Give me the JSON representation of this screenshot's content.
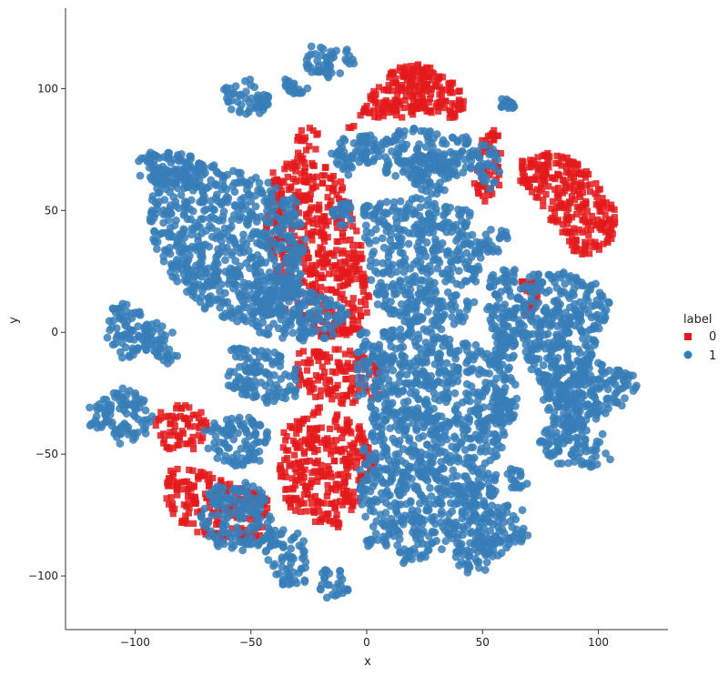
{
  "chart_data": {
    "type": "scatter",
    "xlabel": "x",
    "ylabel": "y",
    "xlim": [
      -130,
      130
    ],
    "ylim": [
      -122,
      133
    ],
    "xticks": [
      -100,
      -50,
      0,
      50,
      100
    ],
    "yticks": [
      -100,
      -50,
      0,
      50,
      100
    ],
    "grid": false,
    "spines": "left-bottom",
    "legend": {
      "title": "label",
      "placement": "right"
    },
    "series": [
      {
        "name": "0",
        "marker": "square",
        "color": "#e41a1c",
        "regions": [
          {
            "x": -13,
            "y": 10,
            "rx": 1.2,
            "ry": 1.8,
            "xs": [
              -12,
              -4,
              6,
              16,
              26,
              36,
              42,
              42,
              30,
              14,
              0,
              -6,
              -12
            ],
            "ys": [
              80,
              88,
              104,
              110,
              110,
              104,
              98,
              86,
              90,
              88,
              88,
              84,
              80
            ]
          },
          {
            "x": -20,
            "y": 45,
            "xs": [
              -40,
              -24,
              -12,
              -4,
              2,
              -4,
              -20,
              -36,
              -44
            ],
            "ys": [
              70,
              72,
              64,
              44,
              12,
              -2,
              -2,
              10,
              40
            ]
          },
          {
            "x": 88,
            "y": 55,
            "xs": [
              66,
              80,
              92,
              100,
              108,
              106,
              98,
              88,
              78,
              72,
              66
            ],
            "ys": [
              70,
              74,
              70,
              60,
              50,
              36,
              30,
              34,
              48,
              56,
              62
            ]
          },
          {
            "x": -5,
            "y": -18,
            "xs": [
              -30,
              -18,
              -4,
              6,
              6,
              -6,
              -20,
              -32
            ],
            "ys": [
              -8,
              -6,
              -8,
              -14,
              -26,
              -30,
              -28,
              -20
            ]
          },
          {
            "x": -12,
            "y": -60,
            "xs": [
              -36,
              -20,
              -4,
              4,
              -2,
              -12,
              -26,
              -36,
              -38
            ],
            "ys": [
              -40,
              -30,
              -36,
              -52,
              -70,
              -80,
              -78,
              -70,
              -56
            ]
          },
          {
            "x": -75,
            "y": -70,
            "xs": [
              -86,
              -72,
              -60,
              -42,
              -44,
              -62,
              -80,
              -88
            ],
            "ys": [
              -56,
              -56,
              -62,
              -66,
              -84,
              -86,
              -80,
              -68
            ]
          },
          {
            "x": -80,
            "y": -40,
            "xs": [
              -90,
              -74,
              -66,
              -72,
              -86,
              -92
            ],
            "ys": [
              -30,
              -30,
              -38,
              -48,
              -48,
              -40
            ]
          },
          {
            "x": 54,
            "y": 70,
            "xs": [
              48,
              58,
              58,
              50,
              46
            ],
            "ys": [
              82,
              84,
              60,
              52,
              60
            ]
          },
          {
            "x": 70,
            "y": 15,
            "xs": [
              66,
              74,
              74,
              68
            ],
            "ys": [
              22,
              22,
              6,
              6
            ]
          },
          {
            "x": -25,
            "y": 75,
            "xs": [
              -30,
              -20,
              -22,
              -30
            ],
            "ys": [
              84,
              84,
              70,
              70
            ]
          }
        ]
      },
      {
        "name": "1",
        "marker": "circle",
        "color": "#377eb8",
        "regions": [
          {
            "xs": [
              -92,
              -70,
              -48,
              -30,
              -26,
              -30,
              -40,
              -56,
              -72,
              -86,
              -96
            ],
            "ys": [
              66,
              70,
              64,
              56,
              40,
              14,
              6,
              4,
              10,
              24,
              46
            ]
          },
          {
            "xs": [
              -50,
              -34,
              -18,
              -8,
              -14,
              -30,
              -46,
              -52
            ],
            "ys": [
              20,
              22,
              16,
              8,
              -2,
              -4,
              -2,
              8
            ]
          },
          {
            "xs": [
              -100,
              -86,
              -76,
              -70,
              -74,
              -86,
              -98
            ],
            "ys": [
              72,
              76,
              74,
              66,
              60,
              58,
              64
            ]
          },
          {
            "xs": [
              -10,
              0,
              0,
              -8,
              -16
            ],
            "ys": [
              82,
              80,
              70,
              64,
              72
            ]
          },
          {
            "xs": [
              -16,
              -8,
              -4,
              -12
            ],
            "ys": [
              52,
              54,
              44,
              42
            ]
          },
          {
            "xs": [
              -4,
              20,
              44,
              50,
              36,
              10,
              -2
            ],
            "ys": [
              80,
              84,
              80,
              70,
              62,
              64,
              70
            ]
          },
          {
            "xs": [
              20,
              36,
              40,
              30,
              18
            ],
            "ys": [
              72,
              74,
              62,
              56,
              60
            ]
          },
          {
            "xs": [
              -2,
              20,
              44,
              50,
              50,
              40,
              20,
              4,
              0
            ],
            "ys": [
              52,
              56,
              50,
              40,
              18,
              2,
              0,
              12,
              30
            ]
          },
          {
            "xs": [
              -4,
              20,
              44,
              60,
              60,
              40,
              12,
              -4
            ],
            "ys": [
              0,
              2,
              -4,
              -10,
              -36,
              -42,
              -40,
              -26
            ]
          },
          {
            "xs": [
              -60,
              -40,
              -26,
              -30,
              -46,
              -60
            ],
            "ys": [
              -6,
              -8,
              -14,
              -26,
              -30,
              -24
            ]
          },
          {
            "xs": [
              -112,
              -104,
              -96,
              -92,
              -104,
              -112
            ],
            "ys": [
              12,
              12,
              8,
              -6,
              -12,
              -4
            ]
          },
          {
            "xs": [
              -96,
              -86,
              -80,
              -86,
              -96
            ],
            "ys": [
              6,
              6,
              -8,
              -14,
              -8
            ]
          },
          {
            "xs": [
              -120,
              -104,
              -92,
              -92,
              -106,
              -120
            ],
            "ys": [
              -30,
              -22,
              -30,
              -42,
              -46,
              -38
            ]
          },
          {
            "xs": [
              -70,
              -52,
              -40,
              -44,
              -56,
              -70
            ],
            "ys": [
              -38,
              -34,
              -40,
              -52,
              -56,
              -50
            ]
          },
          {
            "xs": [
              0,
              22,
              44,
              56,
              56,
              42,
              18,
              0,
              -4
            ],
            "ys": [
              -34,
              -30,
              -38,
              -52,
              -70,
              -86,
              -96,
              -88,
              -60
            ]
          },
          {
            "xs": [
              -68,
              -54,
              -44,
              -40,
              -50,
              -66,
              -72
            ],
            "ys": [
              -64,
              -60,
              -66,
              -82,
              -90,
              -88,
              -76
            ]
          },
          {
            "xs": [
              -42,
              -30,
              -24,
              -26,
              -36,
              -44
            ],
            "ys": [
              -80,
              -80,
              -92,
              -104,
              -104,
              -92
            ]
          },
          {
            "xs": [
              -20,
              -12,
              -8,
              -16,
              -22
            ],
            "ys": [
              -98,
              -96,
              -106,
              -110,
              -106
            ]
          },
          {
            "xs": [
              -62,
              -50,
              -40,
              -46,
              -58
            ],
            "ys": [
              100,
              104,
              96,
              88,
              90
            ]
          },
          {
            "xs": [
              -24,
              -8,
              -4,
              -16,
              -28
            ],
            "ys": [
              118,
              116,
              110,
              104,
              108
            ]
          },
          {
            "xs": [
              -36,
              -26,
              -24,
              -34
            ],
            "ys": [
              104,
              102,
              98,
              98
            ]
          },
          {
            "xs": [
              70,
              84,
              92,
              102,
              106,
              100,
              92,
              80,
              72,
              66
            ],
            "ys": [
              24,
              26,
              22,
              20,
              8,
              -2,
              -26,
              -30,
              -22,
              0
            ]
          },
          {
            "xs": [
              76,
              96,
              116,
              118,
              104,
              86,
              76
            ],
            "ys": [
              -16,
              -10,
              -18,
              -26,
              -34,
              -42,
              -34
            ]
          },
          {
            "xs": [
              76,
              92,
              104,
              106,
              96,
              82,
              74
            ],
            "ys": [
              -40,
              -38,
              -42,
              -52,
              -56,
              -54,
              -46
            ]
          },
          {
            "xs": [
              54,
              66,
              70,
              66,
              56,
              50
            ],
            "ys": [
              24,
              28,
              12,
              -4,
              -6,
              8
            ]
          },
          {
            "xs": [
              56,
              64,
              66,
              62,
              54
            ],
            "ys": [
              -4,
              -2,
              -26,
              -40,
              -30
            ]
          },
          {
            "xs": [
              50,
              58,
              60,
              56,
              48
            ],
            "ys": [
              -34,
              -30,
              -44,
              -52,
              -48
            ]
          },
          {
            "xs": [
              44,
              60,
              70,
              70,
              58,
              46
            ],
            "ys": [
              -74,
              -70,
              -74,
              -84,
              -92,
              -90
            ]
          },
          {
            "xs": [
              40,
              52,
              56,
              50,
              40,
              38
            ],
            "ys": [
              -86,
              -82,
              -92,
              -100,
              -98,
              -92
            ]
          },
          {
            "xs": [
              60,
              68,
              70,
              62
            ],
            "ys": [
              -56,
              -56,
              -64,
              -64
            ]
          },
          {
            "xs": [
              48,
              60,
              62,
              50
            ],
            "ys": [
              42,
              44,
              34,
              32
            ]
          },
          {
            "xs": [
              58,
              62,
              64,
              58
            ],
            "ys": [
              96,
              96,
              92,
              92
            ]
          },
          {
            "xs": [
              48,
              56,
              58,
              54,
              48
            ],
            "ys": [
              78,
              76,
              64,
              58,
              62
            ]
          }
        ]
      }
    ]
  }
}
